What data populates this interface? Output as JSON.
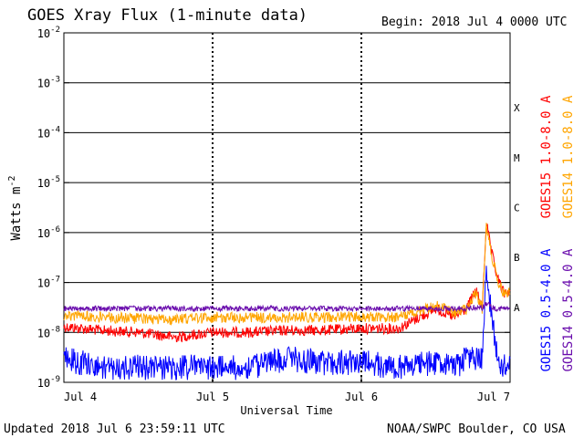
{
  "chart_data": {
    "type": "line",
    "title": "GOES Xray Flux (1-minute data)",
    "begin_label": "Begin:  2018 Jul 4 0000 UTC",
    "xlabel": "Universal Time",
    "ylabel": "Watts m",
    "ylabel_sup": "-2",
    "yscale": "log",
    "ylim": [
      1e-09,
      0.01
    ],
    "xlim": [
      "2018-07-04 00:00",
      "2018-07-07 00:00"
    ],
    "x_ticks": [
      "Jul 4",
      "Jul 5",
      "Jul 6",
      "Jul 7"
    ],
    "y_ticks": [
      {
        "base": "10",
        "exp": "-9",
        "value": 1e-09
      },
      {
        "base": "10",
        "exp": "-8",
        "value": 1e-08
      },
      {
        "base": "10",
        "exp": "-7",
        "value": 1e-07
      },
      {
        "base": "10",
        "exp": "-6",
        "value": 1e-06
      },
      {
        "base": "10",
        "exp": "-5",
        "value": 1e-05
      },
      {
        "base": "10",
        "exp": "-4",
        "value": 0.0001
      },
      {
        "base": "10",
        "exp": "-3",
        "value": 0.001
      },
      {
        "base": "10",
        "exp": "-2",
        "value": 0.01
      }
    ],
    "flare_classes": [
      {
        "label": "A",
        "value": 1e-08
      },
      {
        "label": "B",
        "value": 1e-07
      },
      {
        "label": "C",
        "value": 1e-06
      },
      {
        "label": "M",
        "value": 1e-05
      },
      {
        "label": "X",
        "value": 0.0001
      }
    ],
    "grid_lines": [
      1e-08,
      1e-07,
      1e-06,
      1e-05,
      0.0001,
      0.001
    ],
    "legend_placement": "right, vertical",
    "series": [
      {
        "name": "GOES15 1.0-8.0 A",
        "color": "#ff0000",
        "x": [
          "2018-07-04 00:00",
          "2018-07-04 06:00",
          "2018-07-04 12:00",
          "2018-07-04 18:00",
          "2018-07-05 00:00",
          "2018-07-05 06:00",
          "2018-07-05 12:00",
          "2018-07-05 18:00",
          "2018-07-06 00:00",
          "2018-07-06 06:00",
          "2018-07-06 12:00",
          "2018-07-06 15:00",
          "2018-07-06 17:00",
          "2018-07-06 18:30",
          "2018-07-06 19:30",
          "2018-07-06 20:10",
          "2018-07-06 21:00",
          "2018-07-06 22:00",
          "2018-07-06 23:00",
          "2018-07-07 00:00"
        ],
        "y": [
          1.3e-08,
          1.1e-08,
          1e-08,
          8e-09,
          1e-08,
          1e-08,
          1.1e-08,
          1.1e-08,
          1.2e-08,
          1.2e-08,
          3e-08,
          2e-08,
          3e-08,
          7e-08,
          3e-08,
          1.6e-06,
          4e-07,
          1.2e-07,
          6e-08,
          7e-08
        ]
      },
      {
        "name": "GOES14 1.0-8.0 A",
        "color": "#ffa500",
        "x": [
          "2018-07-04 00:00",
          "2018-07-04 06:00",
          "2018-07-04 12:00",
          "2018-07-04 18:00",
          "2018-07-05 00:00",
          "2018-07-05 06:00",
          "2018-07-05 12:00",
          "2018-07-05 18:00",
          "2018-07-06 00:00",
          "2018-07-06 06:00",
          "2018-07-06 12:00",
          "2018-07-06 15:00",
          "2018-07-06 17:00",
          "2018-07-06 18:30",
          "2018-07-06 19:30",
          "2018-07-06 20:10",
          "2018-07-06 21:00",
          "2018-07-06 22:00",
          "2018-07-06 23:00",
          "2018-07-07 00:00"
        ],
        "y": [
          2.2e-08,
          2e-08,
          1.9e-08,
          1.8e-08,
          2e-08,
          2e-08,
          2e-08,
          2e-08,
          2.1e-08,
          2e-08,
          3.5e-08,
          2.5e-08,
          3e-08,
          6e-08,
          3e-08,
          1.4e-06,
          3.5e-07,
          1.1e-07,
          6e-08,
          6e-08
        ]
      },
      {
        "name": "GOES15 0.5-4.0 A",
        "color": "#0000ff",
        "x": [
          "2018-07-04 00:00",
          "2018-07-04 06:00",
          "2018-07-04 12:00",
          "2018-07-04 18:00",
          "2018-07-05 00:00",
          "2018-07-05 06:00",
          "2018-07-05 12:00",
          "2018-07-05 18:00",
          "2018-07-06 00:00",
          "2018-07-06 06:00",
          "2018-07-06 12:00",
          "2018-07-06 15:00",
          "2018-07-06 17:00",
          "2018-07-06 18:30",
          "2018-07-06 19:30",
          "2018-07-06 20:10",
          "2018-07-06 21:00",
          "2018-07-06 22:00",
          "2018-07-06 23:00",
          "2018-07-07 00:00"
        ],
        "y": [
          3e-09,
          2e-09,
          2e-09,
          2e-09,
          2e-09,
          2e-09,
          3e-09,
          2.5e-09,
          2.5e-09,
          2e-09,
          2.5e-09,
          2e-09,
          3e-09,
          3e-09,
          3e-09,
          2e-07,
          2e-08,
          3e-09,
          2e-09,
          3e-09
        ]
      },
      {
        "name": "GOES14 0.5-4.0 A",
        "color": "#6a0dad",
        "x": [
          "2018-07-04 00:00",
          "2018-07-04 06:00",
          "2018-07-04 12:00",
          "2018-07-04 18:00",
          "2018-07-05 00:00",
          "2018-07-05 06:00",
          "2018-07-05 12:00",
          "2018-07-05 18:00",
          "2018-07-06 00:00",
          "2018-07-06 06:00",
          "2018-07-06 12:00",
          "2018-07-06 15:00",
          "2018-07-06 17:00",
          "2018-07-06 18:30",
          "2018-07-06 19:30",
          "2018-07-06 20:10",
          "2018-07-06 21:00",
          "2018-07-06 22:00",
          "2018-07-06 23:00",
          "2018-07-07 00:00"
        ],
        "y": [
          3e-08,
          3e-08,
          3e-08,
          3e-08,
          3e-08,
          3e-08,
          3e-08,
          3e-08,
          3e-08,
          3e-08,
          3e-08,
          3e-08,
          3e-08,
          3.2e-08,
          3e-08,
          4e-08,
          3.2e-08,
          3e-08,
          3e-08,
          3e-08
        ]
      }
    ]
  },
  "footer": {
    "updated": "Updated 2018 Jul  6 23:59:11 UTC",
    "credit": "NOAA/SWPC Boulder, CO USA"
  }
}
